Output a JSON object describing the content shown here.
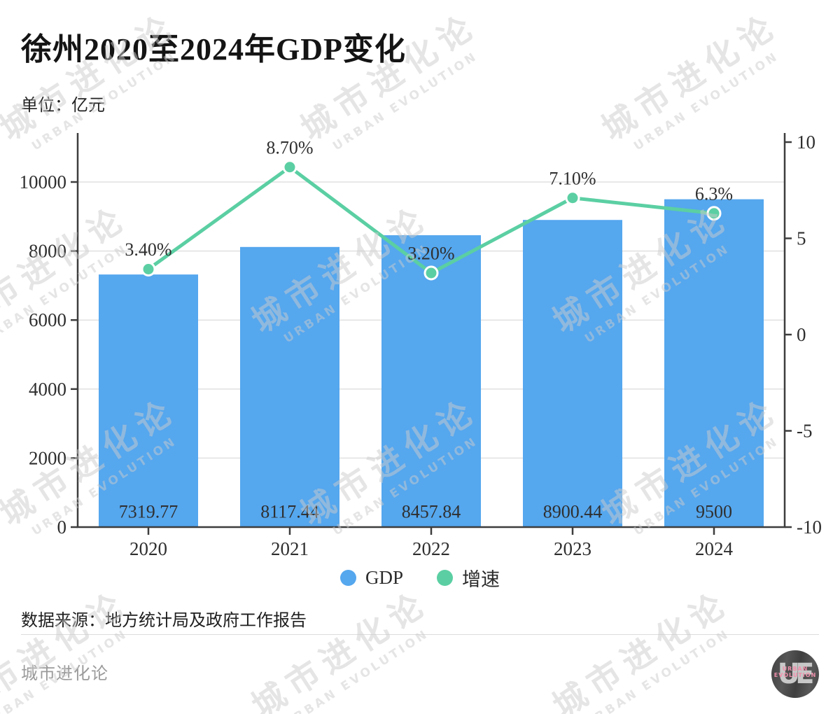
{
  "header": {
    "title": "徐州2020至2024年GDP变化",
    "unit_label": "单位：亿元"
  },
  "chart_data": {
    "type": "bar",
    "subtype": "bar+line combo",
    "title": "徐州2020至2024年GDP变化",
    "unit": "亿元",
    "categories": [
      "2020",
      "2021",
      "2022",
      "2023",
      "2024"
    ],
    "series": [
      {
        "name": "GDP",
        "type": "bar",
        "axis": "left",
        "unit": "亿元",
        "values": [
          7319.77,
          8117.44,
          8457.84,
          8900.44,
          9500
        ],
        "labels": [
          "7319.77",
          "8117.44",
          "8457.84",
          "8900.44",
          "9500"
        ],
        "color": "#55a7ee"
      },
      {
        "name": "增速",
        "type": "line",
        "axis": "right",
        "unit": "%",
        "values": [
          3.4,
          8.7,
          3.2,
          7.1,
          6.3
        ],
        "labels": [
          "3.40%",
          "8.70%",
          "3.20%",
          "7.10%",
          "6.3%"
        ],
        "color": "#5bcfa3",
        "marker_stroke": "#ffffff"
      }
    ],
    "left_axis": {
      "ticks": [
        0,
        2000,
        4000,
        6000,
        8000,
        10000
      ],
      "tick_labels": [
        "0",
        "2000",
        "4000",
        "6000",
        "8000",
        "10000"
      ],
      "range": [
        0,
        11400
      ]
    },
    "right_axis": {
      "ticks": [
        10,
        5,
        0,
        -5,
        -10
      ],
      "tick_labels": [
        "10",
        "5",
        "0",
        "-5",
        "-10"
      ],
      "range": [
        -10,
        10.5
      ]
    },
    "grid": true,
    "legend_position": "bottom",
    "colors": {
      "grid": "#e0e0e0",
      "axis": "#3d3d3d",
      "text": "#2f2f2f"
    }
  },
  "legend": {
    "items": [
      {
        "label": "GDP",
        "color": "#55a7ee"
      },
      {
        "label": "增速",
        "color": "#5bcfa3"
      }
    ]
  },
  "source": {
    "text": "数据来源：地方统计局及政府工作报告"
  },
  "footer": {
    "brand": "城市进化论"
  },
  "watermark": {
    "line1": "城市进化论",
    "line2": "URBAN EVOLUTION"
  },
  "logo": {
    "monogram": "UE",
    "line1": "URBAN",
    "line2": "EVOLUTION"
  }
}
